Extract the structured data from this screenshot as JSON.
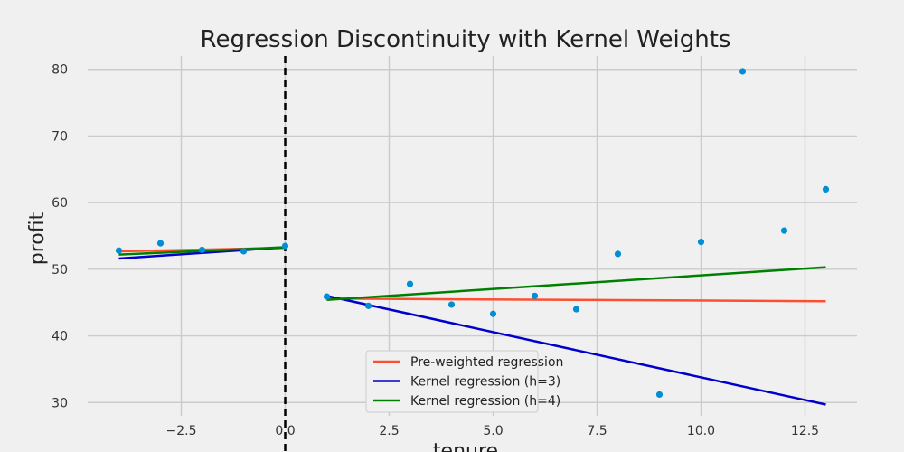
{
  "chart_data": {
    "type": "scatter",
    "title": "Regression Discontinuity with Kernel Weights",
    "xlabel": "tenure",
    "ylabel": "profit",
    "xlim": [
      -4.75,
      13.75
    ],
    "ylim": [
      28,
      82
    ],
    "xticks": [
      -2.5,
      0.0,
      2.5,
      5.0,
      7.5,
      10.0,
      12.5
    ],
    "xtick_labels": [
      "−2.5",
      "0.0",
      "2.5",
      "5.0",
      "7.5",
      "10.0",
      "12.5"
    ],
    "yticks": [
      30,
      40,
      50,
      60,
      70,
      80
    ],
    "ytick_labels": [
      "30",
      "40",
      "50",
      "60",
      "70",
      "80"
    ],
    "grid": true,
    "cutoff": 0,
    "points": {
      "color": "#008fd5",
      "x": [
        -4,
        -3,
        -2,
        -1,
        0,
        1,
        2,
        3,
        4,
        5,
        6,
        7,
        8,
        9,
        10,
        11,
        12,
        13
      ],
      "y": [
        52.8,
        53.9,
        52.9,
        52.7,
        53.5,
        45.9,
        44.5,
        47.8,
        44.7,
        43.3,
        46.0,
        44.0,
        52.3,
        31.2,
        54.1,
        79.7,
        55.8,
        62.0
      ]
    },
    "series": [
      {
        "name": "Pre-weighted regression",
        "color": "#fc4f30",
        "segments": [
          {
            "x": [
              -4,
              0
            ],
            "y": [
              52.7,
              53.2
            ]
          },
          {
            "x": [
              1,
              13
            ],
            "y": [
              45.6,
              45.2
            ]
          }
        ]
      },
      {
        "name": "Kernel regression (h=3)",
        "color": "#0000cc",
        "segments": [
          {
            "x": [
              -4,
              0
            ],
            "y": [
              51.6,
              53.3
            ]
          },
          {
            "x": [
              1,
              13
            ],
            "y": [
              46.0,
              29.7
            ]
          }
        ]
      },
      {
        "name": "Kernel regression (h=4)",
        "color": "#008000",
        "segments": [
          {
            "x": [
              -4,
              0
            ],
            "y": [
              52.2,
              53.3
            ]
          },
          {
            "x": [
              1,
              13
            ],
            "y": [
              45.4,
              50.3
            ]
          }
        ]
      }
    ],
    "legend_position": "bottom-center"
  }
}
